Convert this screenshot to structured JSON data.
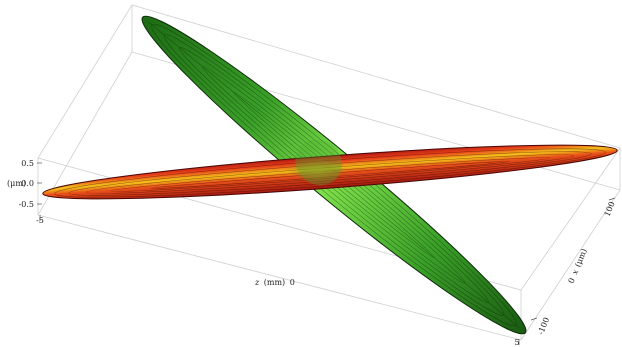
{
  "axes": {
    "vertical": {
      "unit_label": "(μm)",
      "ticks": [
        "0.5",
        "0.0",
        "-0.5"
      ]
    },
    "z_axis": {
      "label_var": "z",
      "label_unit": "(mm)",
      "label_zero": "0",
      "ticks": [
        "-5",
        "5"
      ]
    },
    "x_axis": {
      "label_zero": "0",
      "label_var": "x",
      "label_unit": "(μm)",
      "ticks": [
        "-100",
        "100"
      ]
    }
  },
  "surfaces": [
    {
      "name": "red-beam",
      "colors": {
        "core": "#f4c21a",
        "mid": "#e8401a",
        "edge": "#b01a10",
        "outline": "#4a0606"
      }
    },
    {
      "name": "green-beam",
      "colors": {
        "core": "#7ee04a",
        "mid": "#3aa028",
        "edge": "#1d6a14",
        "outline": "#0c2a08"
      }
    }
  ]
}
